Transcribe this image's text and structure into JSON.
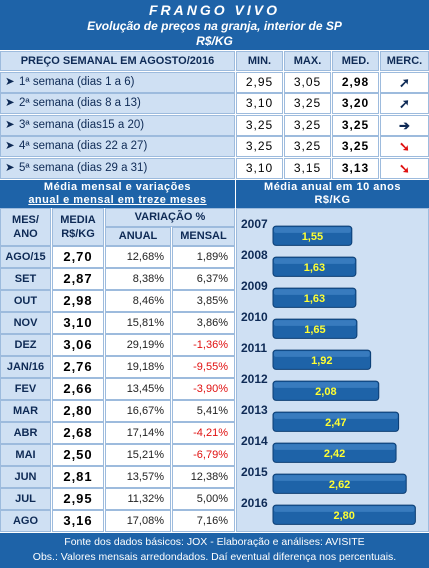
{
  "header": {
    "title": "FRANGO VIVO",
    "subtitle": "Evolução de preços na granja, interior de SP",
    "unit": "R$/KG"
  },
  "weekly": {
    "heading": "PREÇO SEMANAL EM AGOSTO/2016",
    "col_min": "MIN.",
    "col_max": "MAX.",
    "col_med": "MED.",
    "col_merc": "MERC.",
    "rows": [
      {
        "label": "1ª semana (dias 1 a 6)",
        "min": "2,95",
        "max": "3,05",
        "med": "2,98",
        "merc_icon": "arrow-up-right-icon",
        "merc_color": "#0e2a55"
      },
      {
        "label": "2ª semana (dias 8 a 13)",
        "min": "3,10",
        "max": "3,25",
        "med": "3,20",
        "merc_icon": "arrow-up-right-icon",
        "merc_color": "#0e2a55"
      },
      {
        "label": "3ª semana (dias15 a 20)",
        "min": "3,25",
        "max": "3,25",
        "med": "3,25",
        "merc_icon": "arrow-right-icon",
        "merc_color": "#0e2a55"
      },
      {
        "label": "4ª semana (dias 22 a 27)",
        "min": "3,25",
        "max": "3,25",
        "med": "3,25",
        "merc_icon": "arrow-down-right-icon",
        "merc_color": "#e01010"
      },
      {
        "label": "5ª semana (dias 29 a 31)",
        "min": "3,10",
        "max": "3,15",
        "med": "3,13",
        "merc_icon": "arrow-down-right-icon",
        "merc_color": "#e01010"
      }
    ]
  },
  "monthly": {
    "title_line1": "Média mensal e variações",
    "title_line2": "anual e mensal em treze meses",
    "col_mes": "MES/ ANO",
    "col_media": "MEDIA R$/KG",
    "col_variacao": "VARIAÇÃO %",
    "col_anual": "ANUAL",
    "col_mensal": "MENSAL",
    "rows": [
      {
        "mes": "AGO/15",
        "media": "2,70",
        "anual": "12,68%",
        "mensal": "1,89%",
        "neg": false
      },
      {
        "mes": "SET",
        "media": "2,87",
        "anual": "8,38%",
        "mensal": "6,37%",
        "neg": false
      },
      {
        "mes": "OUT",
        "media": "2,98",
        "anual": "8,46%",
        "mensal": "3,85%",
        "neg": false
      },
      {
        "mes": "NOV",
        "media": "3,10",
        "anual": "15,81%",
        "mensal": "3,86%",
        "neg": false
      },
      {
        "mes": "DEZ",
        "media": "3,06",
        "anual": "29,19%",
        "mensal": "-1,36%",
        "neg": true
      },
      {
        "mes": "JAN/16",
        "media": "2,76",
        "anual": "19,18%",
        "mensal": "-9,55%",
        "neg": true
      },
      {
        "mes": "FEV",
        "media": "2,66",
        "anual": "13,45%",
        "mensal": "-3,90%",
        "neg": true
      },
      {
        "mes": "MAR",
        "media": "2,80",
        "anual": "16,67%",
        "mensal": "5,41%",
        "neg": false
      },
      {
        "mes": "ABR",
        "media": "2,68",
        "anual": "17,14%",
        "mensal": "-4,21%",
        "neg": true
      },
      {
        "mes": "MAI",
        "media": "2,50",
        "anual": "15,21%",
        "mensal": "-6,79%",
        "neg": true
      },
      {
        "mes": "JUN",
        "media": "2,81",
        "anual": "13,57%",
        "mensal": "12,38%",
        "neg": false
      },
      {
        "mes": "JUL",
        "media": "2,95",
        "anual": "11,32%",
        "mensal": "5,00%",
        "neg": false
      },
      {
        "mes": "AGO",
        "media": "3,16",
        "anual": "17,08%",
        "mensal": "7,16%",
        "neg": false
      }
    ]
  },
  "annual": {
    "title_line1": "Média anual em 10 anos",
    "title_line2": "R$/KG"
  },
  "chart_data": {
    "type": "bar",
    "orientation": "horizontal",
    "title": "Média anual em 10 anos R$/KG",
    "categories": [
      "2007",
      "2008",
      "2009",
      "2010",
      "2011",
      "2012",
      "2013",
      "2014",
      "2015",
      "2016"
    ],
    "values": [
      1.55,
      1.63,
      1.63,
      1.65,
      1.92,
      2.08,
      2.47,
      2.42,
      2.62,
      2.8
    ],
    "labels": [
      "1,55",
      "1,63",
      "1,63",
      "1,65",
      "1,92",
      "2,08",
      "2,47",
      "2,42",
      "2,62",
      "2,80"
    ],
    "xlim": [
      0,
      2.95
    ],
    "bar_color": "#1e63a8",
    "label_color": "#ffff33"
  },
  "footer": {
    "line1": "Fonte dos dados básicos: JOX - Elaboração e análises: AVISITE",
    "line2": "Obs.: Valores mensais arredondados. Daí eventual diferença nos percentuais."
  }
}
